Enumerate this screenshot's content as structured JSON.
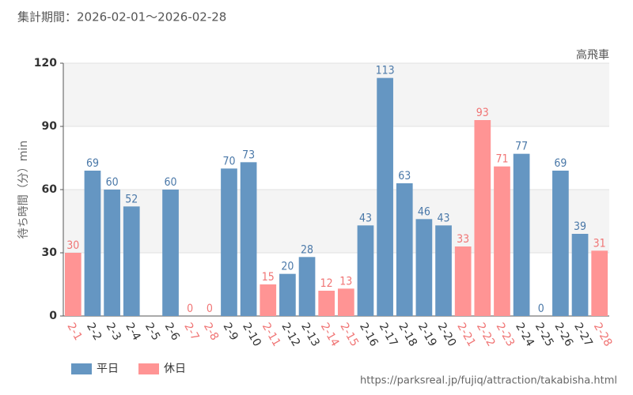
{
  "chart_data": {
    "type": "bar",
    "title": "集計期間：2026-02-01～2026-02-28",
    "subtitle": "高飛車",
    "y_label": "待ち時間（分）min",
    "source": "https://parksreal.jp/fujiq/attraction/takabisha.html",
    "categories": [
      "2-1",
      "2-2",
      "2-3",
      "2-4",
      "2-5",
      "2-6",
      "2-7",
      "2-8",
      "2-9",
      "2-10",
      "2-11",
      "2-12",
      "2-13",
      "2-14",
      "2-15",
      "2-16",
      "2-17",
      "2-18",
      "2-19",
      "2-20",
      "2-21",
      "2-22",
      "2-23",
      "2-24",
      "2-25",
      "2-26",
      "2-27",
      "2-28"
    ],
    "series": [
      {
        "name": "平日",
        "color": "#6596c2",
        "label_color": "#4a78a8",
        "values": [
          null,
          69,
          60,
          52,
          null,
          60,
          null,
          null,
          70,
          73,
          null,
          20,
          28,
          null,
          null,
          43,
          113,
          63,
          46,
          43,
          null,
          null,
          null,
          77,
          0,
          69,
          39,
          null
        ]
      },
      {
        "name": "休日",
        "color": "#ff9494",
        "label_color": "#f07474",
        "values": [
          30,
          null,
          null,
          null,
          null,
          null,
          0,
          0,
          null,
          null,
          15,
          null,
          null,
          12,
          13,
          null,
          null,
          null,
          null,
          null,
          33,
          93,
          71,
          null,
          null,
          null,
          null,
          31
        ]
      }
    ],
    "ylim": [
      0,
      120
    ],
    "yticks": [
      0,
      30,
      60,
      90,
      120
    ],
    "grid": true,
    "legend": "bottom-left"
  }
}
